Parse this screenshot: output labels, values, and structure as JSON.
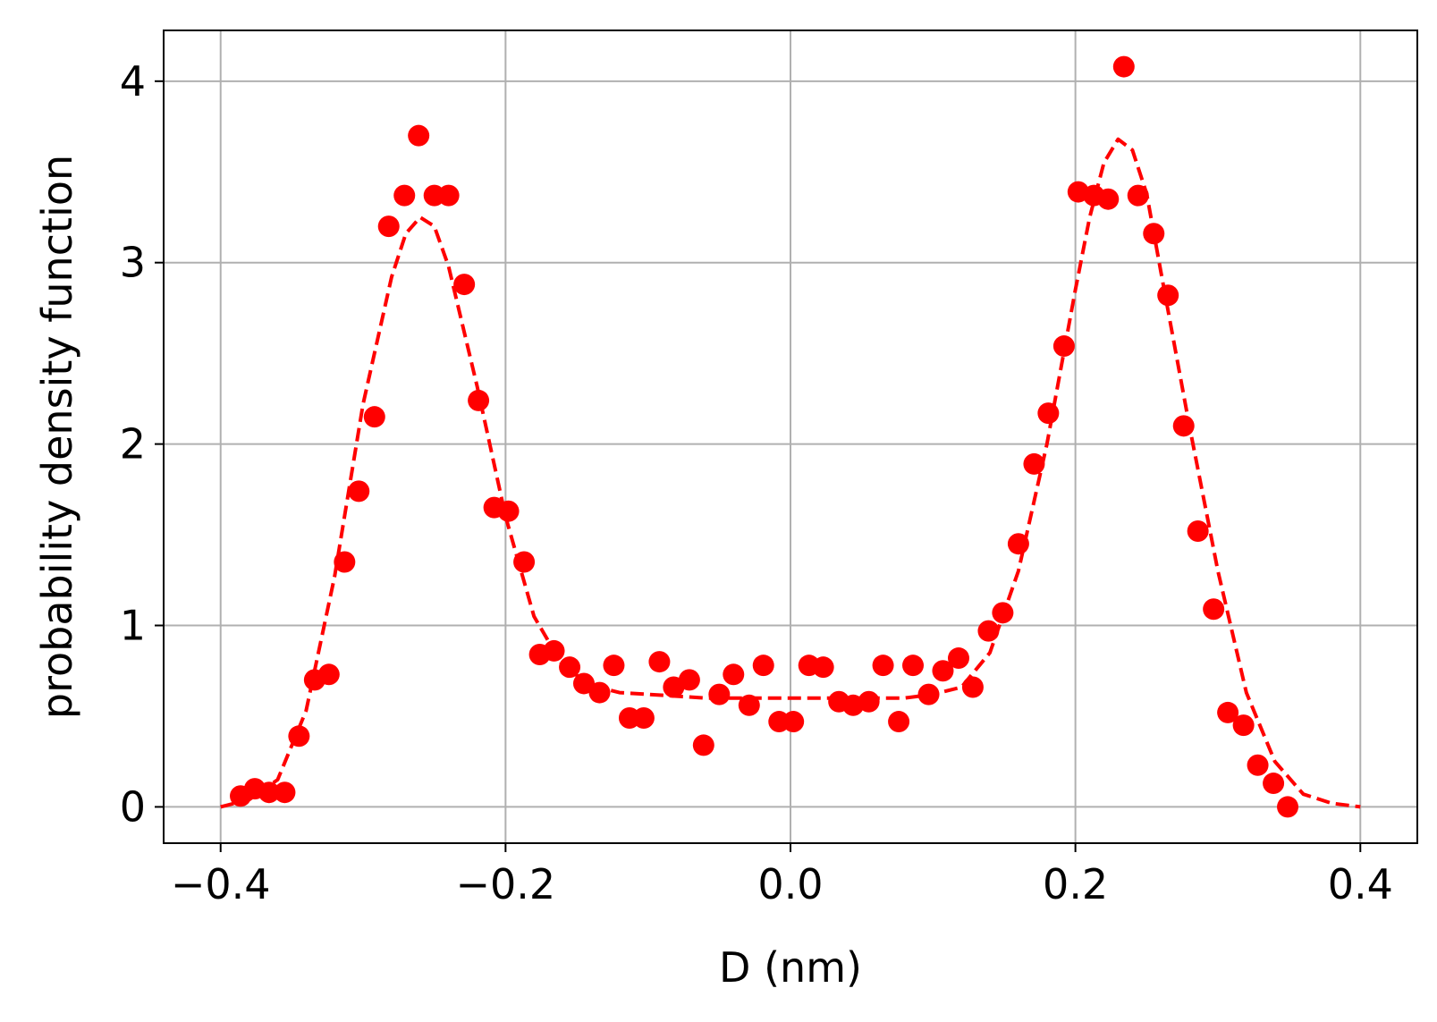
{
  "chart_data": {
    "type": "scatter",
    "title": "",
    "xlabel": "D (nm)",
    "ylabel": "probability density function",
    "xlim": [
      -0.44,
      0.44
    ],
    "ylim": [
      -0.2,
      4.28
    ],
    "xticks": [
      -0.4,
      -0.2,
      0.0,
      0.2,
      0.4
    ],
    "xtick_labels": [
      "−0.4",
      "−0.2",
      "0.0",
      "0.2",
      "0.4"
    ],
    "yticks": [
      0,
      1,
      2,
      3,
      4
    ],
    "ytick_labels": [
      "0",
      "1",
      "2",
      "3",
      "4"
    ],
    "grid": true,
    "colors": {
      "series": "#ff0000",
      "grid": "#b0b0b0",
      "axes": "#000000"
    },
    "series": [
      {
        "kind": "scatter",
        "marker": "filled-circle",
        "x": [
          -0.386,
          -0.376,
          -0.366,
          -0.355,
          -0.345,
          -0.334,
          -0.324,
          -0.313,
          -0.303,
          -0.292,
          -0.282,
          -0.271,
          -0.261,
          -0.25,
          -0.24,
          -0.229,
          -0.219,
          -0.208,
          -0.198,
          -0.187,
          -0.176,
          -0.166,
          -0.155,
          -0.145,
          -0.134,
          -0.124,
          -0.113,
          -0.103,
          -0.092,
          -0.082,
          -0.071,
          -0.061,
          -0.05,
          -0.04,
          -0.029,
          -0.019,
          -0.008,
          0.002,
          0.013,
          0.023,
          0.034,
          0.044,
          0.055,
          0.065,
          0.076,
          0.086,
          0.097,
          0.107,
          0.118,
          0.128,
          0.139,
          0.149,
          0.16,
          0.171,
          0.181,
          0.192,
          0.202,
          0.213,
          0.223,
          0.234,
          0.244,
          0.255,
          0.265,
          0.276,
          0.286,
          0.297,
          0.307,
          0.318,
          0.328,
          0.339,
          0.349
        ],
        "y": [
          0.06,
          0.1,
          0.08,
          0.08,
          0.39,
          0.7,
          0.73,
          1.35,
          1.74,
          2.15,
          3.2,
          3.37,
          3.7,
          3.37,
          3.37,
          2.88,
          2.24,
          1.65,
          1.63,
          1.35,
          0.84,
          0.86,
          0.77,
          0.68,
          0.63,
          0.78,
          0.49,
          0.49,
          0.8,
          0.66,
          0.7,
          0.34,
          0.62,
          0.73,
          0.56,
          0.78,
          0.47,
          0.47,
          0.78,
          0.77,
          0.58,
          0.56,
          0.58,
          0.78,
          0.47,
          0.78,
          0.62,
          0.75,
          0.82,
          0.66,
          0.97,
          1.07,
          1.45,
          1.89,
          2.17,
          2.54,
          3.39,
          3.37,
          3.35,
          4.08,
          3.37,
          3.16,
          2.82,
          2.1,
          1.52,
          1.09,
          0.52,
          0.45,
          0.23,
          0.13,
          0.0
        ]
      },
      {
        "kind": "line",
        "style": "dashed",
        "x": [
          -0.4,
          -0.38,
          -0.36,
          -0.34,
          -0.32,
          -0.3,
          -0.28,
          -0.27,
          -0.26,
          -0.25,
          -0.24,
          -0.22,
          -0.2,
          -0.18,
          -0.16,
          -0.14,
          -0.12,
          -0.1,
          -0.08,
          -0.06,
          -0.04,
          -0.02,
          0.0,
          0.02,
          0.04,
          0.06,
          0.08,
          0.1,
          0.12,
          0.14,
          0.16,
          0.18,
          0.2,
          0.21,
          0.22,
          0.23,
          0.24,
          0.25,
          0.26,
          0.28,
          0.3,
          0.32,
          0.34,
          0.36,
          0.38,
          0.4
        ],
        "y": [
          0.0,
          0.04,
          0.15,
          0.53,
          1.27,
          2.22,
          2.92,
          3.16,
          3.25,
          3.2,
          2.98,
          2.32,
          1.6,
          1.05,
          0.78,
          0.67,
          0.63,
          0.62,
          0.61,
          0.6,
          0.6,
          0.6,
          0.6,
          0.6,
          0.6,
          0.6,
          0.6,
          0.62,
          0.66,
          0.85,
          1.3,
          2.0,
          2.85,
          3.25,
          3.55,
          3.68,
          3.62,
          3.38,
          2.95,
          2.1,
          1.3,
          0.63,
          0.25,
          0.07,
          0.02,
          0.0
        ]
      }
    ]
  }
}
